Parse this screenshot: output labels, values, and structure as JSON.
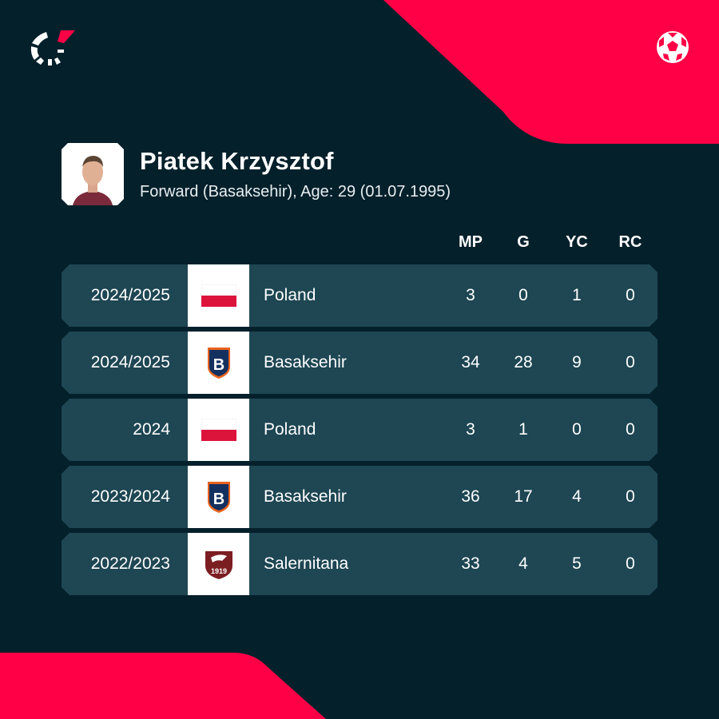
{
  "colors": {
    "background": "#04202b",
    "accent": "#ff0046",
    "row": "#1e4653"
  },
  "icons": {
    "logo": "flashscore-logo-icon",
    "sport": "football-icon"
  },
  "player": {
    "name": "Piatek Krzysztof",
    "subtitle": "Forward (Basaksehir), Age: 29 (01.07.1995)"
  },
  "columns": [
    "MP",
    "G",
    "YC",
    "RC"
  ],
  "rows": [
    {
      "season": "2024/2025",
      "team": "Poland",
      "logo": "poland-flag",
      "stats": [
        "3",
        "0",
        "1",
        "0"
      ]
    },
    {
      "season": "2024/2025",
      "team": "Basaksehir",
      "logo": "basaksehir-crest",
      "stats": [
        "34",
        "28",
        "9",
        "0"
      ]
    },
    {
      "season": "2024",
      "team": "Poland",
      "logo": "poland-flag",
      "stats": [
        "3",
        "1",
        "0",
        "0"
      ]
    },
    {
      "season": "2023/2024",
      "team": "Basaksehir",
      "logo": "basaksehir-crest",
      "stats": [
        "36",
        "17",
        "4",
        "0"
      ]
    },
    {
      "season": "2022/2023",
      "team": "Salernitana",
      "logo": "salernitana-crest",
      "stats": [
        "33",
        "4",
        "5",
        "0"
      ]
    }
  ]
}
